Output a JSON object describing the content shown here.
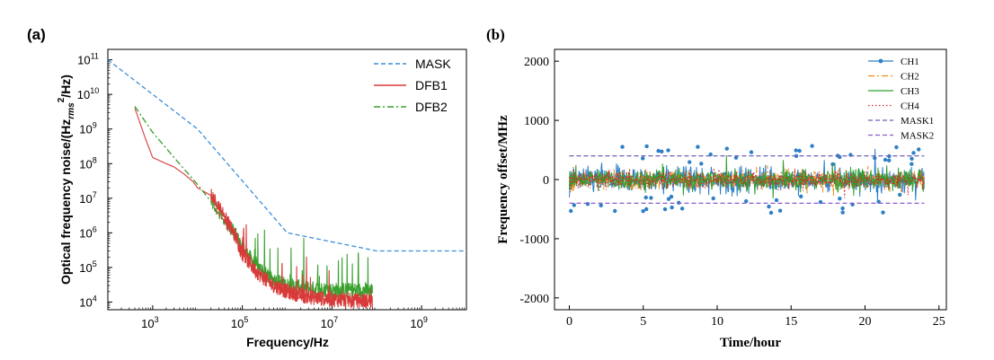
{
  "colors": {
    "mask": "#3b8fd9",
    "dfb1": "#d83a3a",
    "dfb2": "#3aa02e",
    "ch1": "#2c7fc8",
    "ch2": "#f08a1e",
    "ch3": "#2fa02f",
    "ch4": "#d62728",
    "mask1": "#6b5fb6",
    "mask2": "#8a5cc9"
  },
  "chart_data": [
    {
      "type": "line",
      "panel_label": "(a)",
      "xlabel": "Frequency/Hz",
      "ylabel_parts": {
        "before": "Optical frequency noise/(Hz",
        "sub": "rms",
        "sup": "2",
        "after": "/Hz)"
      },
      "x_scale": "log",
      "y_scale": "log",
      "xlim": [
        100,
        10000000000
      ],
      "ylim": [
        6000,
        200000000000
      ],
      "x_ticks": [
        {
          "value": 1000,
          "base": "10",
          "exp": "3"
        },
        {
          "value": 100000,
          "base": "10",
          "exp": "5"
        },
        {
          "value": 10000000,
          "base": "10",
          "exp": "7"
        },
        {
          "value": 1000000000,
          "base": "10",
          "exp": "9"
        }
      ],
      "y_ticks": [
        {
          "value": 10000,
          "base": "10",
          "exp": "4"
        },
        {
          "value": 100000,
          "base": "10",
          "exp": "5"
        },
        {
          "value": 1000000,
          "base": "10",
          "exp": "6"
        },
        {
          "value": 10000000,
          "base": "10",
          "exp": "7"
        },
        {
          "value": 100000000,
          "base": "10",
          "exp": "8"
        },
        {
          "value": 1000000000,
          "base": "10",
          "exp": "9"
        },
        {
          "value": 10000000000,
          "base": "10",
          "exp": "10"
        },
        {
          "value": 100000000000,
          "base": "10",
          "exp": "11"
        }
      ],
      "grid": false,
      "legend_position": "top-right",
      "series": [
        {
          "name": "MASK",
          "style": "dashed",
          "x": [
            100,
            10000,
            1000000,
            100000000,
            10000000000
          ],
          "y": [
            100000000000,
            1000000000,
            1000000,
            300000,
            300000
          ]
        },
        {
          "name": "DFB1",
          "style": "solid",
          "x": [
            400,
            700,
            1000,
            2000,
            3000,
            5000,
            8000,
            10000,
            20000,
            40000,
            70000,
            100000,
            200000,
            400000,
            1000000,
            3000000,
            10000000,
            30000000,
            80000000
          ],
          "y": [
            4000000000,
            500000000,
            150000000,
            100000000,
            80000000,
            50000000,
            30000000,
            20000000,
            12000000,
            3000000,
            800000,
            250000,
            80000,
            35000,
            20000,
            14000,
            12000,
            11000,
            11000
          ]
        },
        {
          "name": "DFB2",
          "style": "dashdot",
          "x": [
            400,
            1000,
            3000,
            10000,
            20000,
            40000,
            70000,
            100000,
            200000,
            400000,
            1000000,
            3000000,
            10000000,
            30000000,
            80000000
          ],
          "y": [
            4500000000,
            800000000,
            150000000,
            25000000,
            8000000,
            2500000,
            900000,
            350000,
            120000,
            50000,
            30000,
            25000,
            22000,
            22000,
            22000
          ]
        }
      ]
    },
    {
      "type": "line",
      "panel_label": "(b)",
      "xlabel": "Time/hour",
      "ylabel": "Frequency offset/MHz",
      "xlim": [
        -1,
        25.5
      ],
      "ylim": [
        -2200,
        2200
      ],
      "x_ticks": [
        0,
        5,
        10,
        15,
        20,
        25
      ],
      "y_ticks": [
        -2000,
        -1000,
        0,
        1000,
        2000
      ],
      "grid": false,
      "legend_position": "top-right",
      "x_range": [
        0,
        24
      ],
      "series": [
        {
          "name": "CH1",
          "style": "solid-marker",
          "noise_amplitude_mhz": 320
        },
        {
          "name": "CH2",
          "style": "dashdot",
          "noise_amplitude_mhz": 230
        },
        {
          "name": "CH3",
          "style": "solid",
          "noise_amplitude_mhz": 260
        },
        {
          "name": "CH4",
          "style": "dotted",
          "noise_amplitude_mhz": 210
        },
        {
          "name": "MASK1",
          "style": "dashed",
          "y": [
            400,
            400
          ]
        },
        {
          "name": "MASK2",
          "style": "dashed",
          "y": [
            -400,
            -400
          ]
        }
      ]
    }
  ]
}
